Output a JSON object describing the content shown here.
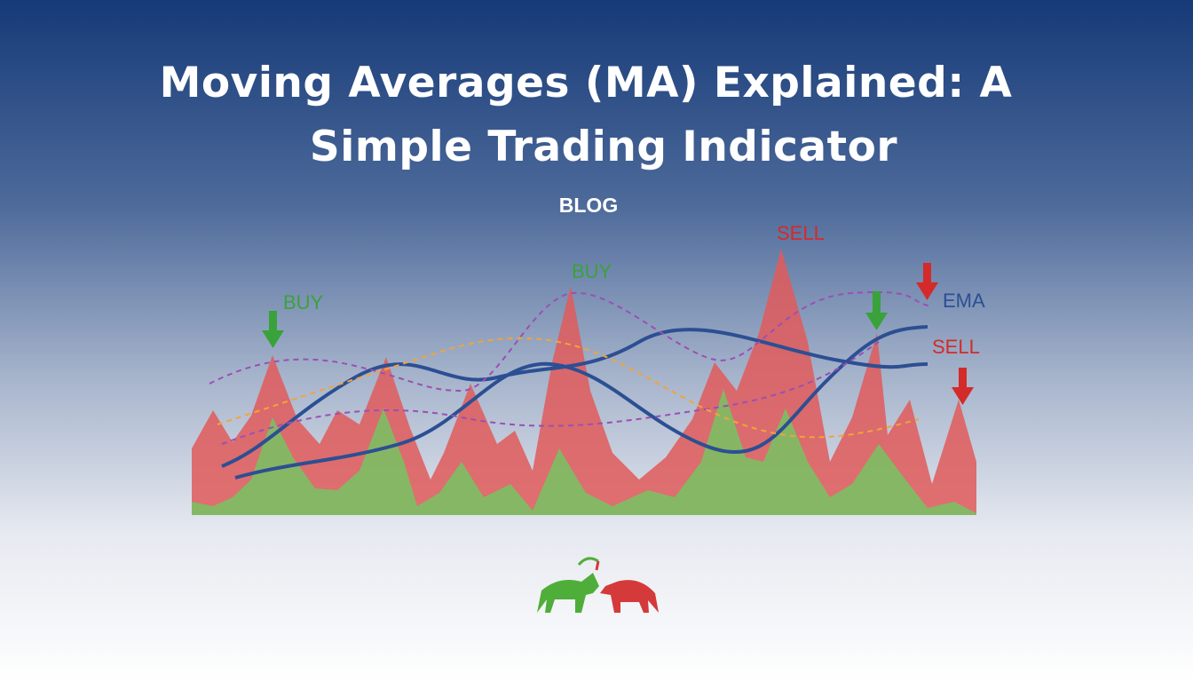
{
  "header": {
    "title_lines": [
      "Moving Averages (MA) Explained: A",
      "Simple Trading Indicator"
    ],
    "category": "BLOG"
  },
  "illustration": {
    "annotations": [
      "BUY",
      "BUY",
      "SELL",
      "EMA",
      "SELL"
    ]
  }
}
